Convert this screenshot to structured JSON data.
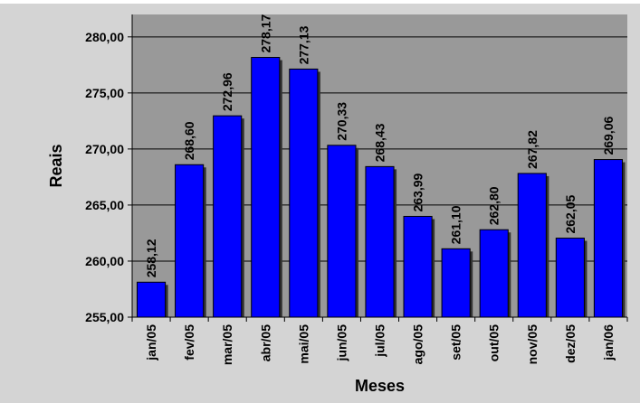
{
  "chart_data": {
    "type": "bar",
    "title": "",
    "xlabel": "Meses",
    "ylabel": "Reais",
    "ylim": [
      255,
      282
    ],
    "yticks": [
      255,
      260,
      265,
      270,
      275,
      280
    ],
    "ytick_labels": [
      "255,00",
      "260,00",
      "265,00",
      "270,00",
      "275,00",
      "280,00"
    ],
    "categories": [
      "jan/05",
      "fev/05",
      "mar/05",
      "abr/05",
      "mai/05",
      "jun/05",
      "jul/05",
      "ago/05",
      "set/05",
      "out/05",
      "nov/05",
      "dez/05",
      "jan/06"
    ],
    "values": [
      258.12,
      268.6,
      272.96,
      278.17,
      277.13,
      270.33,
      268.43,
      263.99,
      261.1,
      262.8,
      267.82,
      262.05,
      269.06
    ],
    "value_labels": [
      "258,12",
      "268,60",
      "272,96",
      "278,17",
      "277,13",
      "270,33",
      "268,43",
      "263,99",
      "261,10",
      "262,80",
      "267,82",
      "262,05",
      "269,06"
    ],
    "grid": true,
    "legend": "none",
    "colors": {
      "bar": "#0000ff",
      "plot_background": "#999999",
      "outer_background": "#d4d4d4",
      "gridline": "#000000"
    }
  }
}
